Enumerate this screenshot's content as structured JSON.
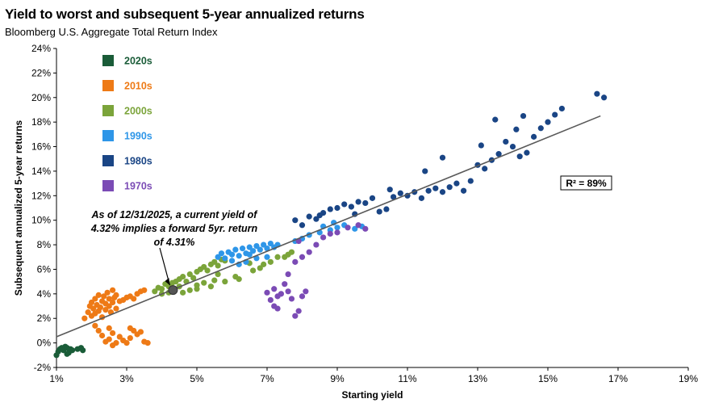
{
  "header": {
    "title": "Yield to worst and subsequent 5-year annualized returns",
    "subtitle": "Bloomberg U.S. Aggregate Total Return Index"
  },
  "colors": {
    "2020s": "#1a5c38",
    "2010s": "#ee7a16",
    "2000s": "#7ba43a",
    "1990s": "#2e96e8",
    "1980s": "#1a4585",
    "1970s": "#7b4bb5",
    "trendline": "#595959",
    "current_marker": "#555555"
  },
  "chart_data": {
    "type": "scatter",
    "title": "Yield to worst and subsequent 5-year annualized returns",
    "subtitle": "Bloomberg U.S. Aggregate Total Return Index",
    "xlabel": "Starting yield",
    "ylabel": "Subsequent annualized 5-year returns",
    "xlim": [
      1,
      19
    ],
    "ylim": [
      -2,
      24
    ],
    "x_ticks": [
      1,
      3,
      5,
      7,
      9,
      11,
      13,
      15,
      17,
      19
    ],
    "x_tick_labels": [
      "1%",
      "3%",
      "5%",
      "7%",
      "9%",
      "11%",
      "13%",
      "15%",
      "17%",
      "19%"
    ],
    "y_ticks": [
      -2,
      0,
      2,
      4,
      6,
      8,
      10,
      12,
      14,
      16,
      18,
      20,
      22,
      24
    ],
    "y_tick_labels": [
      "-2%",
      "0%",
      "2%",
      "4%",
      "6%",
      "8%",
      "10%",
      "12%",
      "14%",
      "16%",
      "18%",
      "20%",
      "22%",
      "24%"
    ],
    "grid": false,
    "legend_position": "top-left",
    "trendline": {
      "x": [
        1,
        16.5
      ],
      "y": [
        0.5,
        18.5
      ]
    },
    "r_squared_label": "R² = 89%",
    "annotation": {
      "lines": [
        "As of 12/31/2025,  a current yield of",
        "4.32%  implies a forward  5yr. return",
        "of 4.31%"
      ],
      "point": {
        "x": 4.32,
        "y": 4.31
      }
    },
    "series": [
      {
        "name": "2020s",
        "points": [
          [
            1.05,
            -0.7
          ],
          [
            1.1,
            -0.5
          ],
          [
            1.15,
            -0.4
          ],
          [
            1.2,
            -0.6
          ],
          [
            1.25,
            -0.3
          ],
          [
            1.3,
            -0.4
          ],
          [
            1.35,
            -0.8
          ],
          [
            1.4,
            -0.5
          ],
          [
            1.45,
            -0.6
          ],
          [
            1.6,
            -0.5
          ],
          [
            1.7,
            -0.4
          ],
          [
            1.0,
            -1.0
          ],
          [
            1.3,
            -0.9
          ],
          [
            1.75,
            -0.6
          ]
        ]
      },
      {
        "name": "2010s",
        "points": [
          [
            1.8,
            2.0
          ],
          [
            1.9,
            2.5
          ],
          [
            1.95,
            3.0
          ],
          [
            2.0,
            2.2
          ],
          [
            2.0,
            3.3
          ],
          [
            2.05,
            2.8
          ],
          [
            2.1,
            2.4
          ],
          [
            2.1,
            3.6
          ],
          [
            2.15,
            3.1
          ],
          [
            2.2,
            2.6
          ],
          [
            2.2,
            3.9
          ],
          [
            2.25,
            2.9
          ],
          [
            2.3,
            3.4
          ],
          [
            2.3,
            2.1
          ],
          [
            2.35,
            3.8
          ],
          [
            2.4,
            2.7
          ],
          [
            2.4,
            3.2
          ],
          [
            2.45,
            4.1
          ],
          [
            2.5,
            3.0
          ],
          [
            2.5,
            3.6
          ],
          [
            2.55,
            2.5
          ],
          [
            2.6,
            3.3
          ],
          [
            2.6,
            4.3
          ],
          [
            2.65,
            3.7
          ],
          [
            2.7,
            2.8
          ],
          [
            2.7,
            3.9
          ],
          [
            2.8,
            3.4
          ],
          [
            2.9,
            3.5
          ],
          [
            3.0,
            3.7
          ],
          [
            3.1,
            3.8
          ],
          [
            3.2,
            3.6
          ],
          [
            3.3,
            4.0
          ],
          [
            3.4,
            4.2
          ],
          [
            3.5,
            4.3
          ],
          [
            2.1,
            1.4
          ],
          [
            2.2,
            1.0
          ],
          [
            2.3,
            0.6
          ],
          [
            2.5,
            1.2
          ],
          [
            2.5,
            0.3
          ],
          [
            2.6,
            0.8
          ],
          [
            2.7,
            0.0
          ],
          [
            2.8,
            0.5
          ],
          [
            2.9,
            0.2
          ],
          [
            3.0,
            0.0
          ],
          [
            3.1,
            0.4
          ],
          [
            3.2,
            1.0
          ],
          [
            3.3,
            0.7
          ],
          [
            3.4,
            0.9
          ],
          [
            3.5,
            0.1
          ],
          [
            3.6,
            0.0
          ],
          [
            3.1,
            1.2
          ],
          [
            2.4,
            0.1
          ],
          [
            2.6,
            -0.2
          ]
        ]
      },
      {
        "name": "2000s",
        "points": [
          [
            3.8,
            4.2
          ],
          [
            3.9,
            4.5
          ],
          [
            4.0,
            4.4
          ],
          [
            4.1,
            4.8
          ],
          [
            4.2,
            4.6
          ],
          [
            4.3,
            4.9
          ],
          [
            4.4,
            5.0
          ],
          [
            4.5,
            5.2
          ],
          [
            4.6,
            5.4
          ],
          [
            4.7,
            5.0
          ],
          [
            4.8,
            5.6
          ],
          [
            4.9,
            5.3
          ],
          [
            5.0,
            5.8
          ],
          [
            5.1,
            6.0
          ],
          [
            5.2,
            6.2
          ],
          [
            5.3,
            5.9
          ],
          [
            5.4,
            6.4
          ],
          [
            5.5,
            6.6
          ],
          [
            5.6,
            6.3
          ],
          [
            5.7,
            6.8
          ],
          [
            5.8,
            6.7
          ],
          [
            4.0,
            4.0
          ],
          [
            4.2,
            4.1
          ],
          [
            4.5,
            4.6
          ],
          [
            4.8,
            4.3
          ],
          [
            5.0,
            4.7
          ],
          [
            5.2,
            4.9
          ],
          [
            5.5,
            5.1
          ],
          [
            5.6,
            5.6
          ],
          [
            5.8,
            5.0
          ],
          [
            6.1,
            5.4
          ],
          [
            6.2,
            5.2
          ],
          [
            6.5,
            6.5
          ],
          [
            6.6,
            5.9
          ],
          [
            6.8,
            6.1
          ],
          [
            6.9,
            6.4
          ],
          [
            7.1,
            6.6
          ],
          [
            7.3,
            7.0
          ],
          [
            7.5,
            7.0
          ],
          [
            7.6,
            7.2
          ],
          [
            7.7,
            7.4
          ],
          [
            5.0,
            4.4
          ],
          [
            5.4,
            4.6
          ],
          [
            4.6,
            4.1
          ]
        ]
      },
      {
        "name": "1990s",
        "points": [
          [
            5.6,
            7.0
          ],
          [
            5.7,
            7.3
          ],
          [
            5.8,
            6.9
          ],
          [
            5.9,
            7.4
          ],
          [
            6.0,
            7.2
          ],
          [
            6.1,
            7.6
          ],
          [
            6.2,
            7.1
          ],
          [
            6.3,
            7.7
          ],
          [
            6.4,
            7.3
          ],
          [
            6.5,
            7.8
          ],
          [
            6.6,
            7.5
          ],
          [
            6.7,
            7.9
          ],
          [
            6.8,
            7.6
          ],
          [
            6.9,
            8.0
          ],
          [
            7.0,
            7.7
          ],
          [
            7.1,
            8.1
          ],
          [
            7.2,
            7.8
          ],
          [
            7.3,
            8.0
          ],
          [
            6.0,
            6.7
          ],
          [
            6.4,
            6.6
          ],
          [
            6.7,
            6.9
          ],
          [
            7.0,
            7.0
          ],
          [
            7.8,
            8.3
          ],
          [
            8.0,
            8.5
          ],
          [
            8.2,
            8.8
          ],
          [
            8.5,
            9.0
          ],
          [
            8.8,
            9.2
          ],
          [
            9.0,
            9.4
          ],
          [
            9.2,
            9.6
          ],
          [
            9.5,
            9.3
          ],
          [
            9.7,
            9.5
          ],
          [
            8.6,
            9.5
          ],
          [
            8.9,
            9.8
          ],
          [
            6.2,
            6.4
          ],
          [
            6.5,
            7.2
          ]
        ]
      },
      {
        "name": "1980s",
        "points": [
          [
            7.8,
            10.0
          ],
          [
            8.0,
            9.6
          ],
          [
            8.2,
            10.3
          ],
          [
            8.4,
            10.1
          ],
          [
            8.6,
            10.6
          ],
          [
            8.8,
            10.9
          ],
          [
            9.0,
            11.0
          ],
          [
            9.2,
            11.3
          ],
          [
            9.4,
            11.1
          ],
          [
            9.6,
            11.5
          ],
          [
            9.8,
            11.4
          ],
          [
            10.0,
            11.8
          ],
          [
            10.2,
            10.7
          ],
          [
            10.4,
            10.9
          ],
          [
            10.6,
            11.9
          ],
          [
            10.8,
            12.2
          ],
          [
            11.0,
            12.0
          ],
          [
            11.2,
            12.3
          ],
          [
            11.4,
            11.8
          ],
          [
            11.6,
            12.4
          ],
          [
            11.8,
            12.6
          ],
          [
            12.0,
            12.3
          ],
          [
            12.2,
            12.7
          ],
          [
            12.4,
            13.0
          ],
          [
            12.6,
            12.4
          ],
          [
            12.8,
            13.2
          ],
          [
            13.0,
            14.5
          ],
          [
            13.2,
            14.2
          ],
          [
            13.4,
            14.9
          ],
          [
            13.6,
            15.4
          ],
          [
            13.8,
            16.4
          ],
          [
            14.0,
            16.0
          ],
          [
            14.2,
            15.2
          ],
          [
            14.4,
            15.5
          ],
          [
            14.6,
            16.8
          ],
          [
            14.8,
            17.5
          ],
          [
            15.0,
            18.0
          ],
          [
            15.2,
            18.6
          ],
          [
            15.4,
            19.1
          ],
          [
            16.4,
            20.3
          ],
          [
            16.6,
            20.0
          ],
          [
            12.0,
            15.1
          ],
          [
            11.5,
            14.0
          ],
          [
            10.5,
            12.5
          ],
          [
            9.5,
            10.5
          ],
          [
            8.5,
            10.4
          ],
          [
            13.5,
            18.2
          ],
          [
            14.1,
            17.4
          ],
          [
            13.1,
            16.1
          ],
          [
            14.3,
            18.5
          ]
        ]
      },
      {
        "name": "1970s",
        "points": [
          [
            7.0,
            4.1
          ],
          [
            7.1,
            3.5
          ],
          [
            7.2,
            4.4
          ],
          [
            7.3,
            3.8
          ],
          [
            7.4,
            4.0
          ],
          [
            7.3,
            2.8
          ],
          [
            7.2,
            3.0
          ],
          [
            7.5,
            4.8
          ],
          [
            7.6,
            4.2
          ],
          [
            7.7,
            3.6
          ],
          [
            7.8,
            2.2
          ],
          [
            7.9,
            2.6
          ],
          [
            8.0,
            3.8
          ],
          [
            8.1,
            4.2
          ],
          [
            7.6,
            5.6
          ],
          [
            7.8,
            6.6
          ],
          [
            8.0,
            7.0
          ],
          [
            8.2,
            7.4
          ],
          [
            8.4,
            8.0
          ],
          [
            8.6,
            8.6
          ],
          [
            8.8,
            8.9
          ],
          [
            9.0,
            9.0
          ],
          [
            9.3,
            9.4
          ],
          [
            9.6,
            9.6
          ],
          [
            9.8,
            9.3
          ],
          [
            7.9,
            8.3
          ]
        ]
      }
    ]
  }
}
